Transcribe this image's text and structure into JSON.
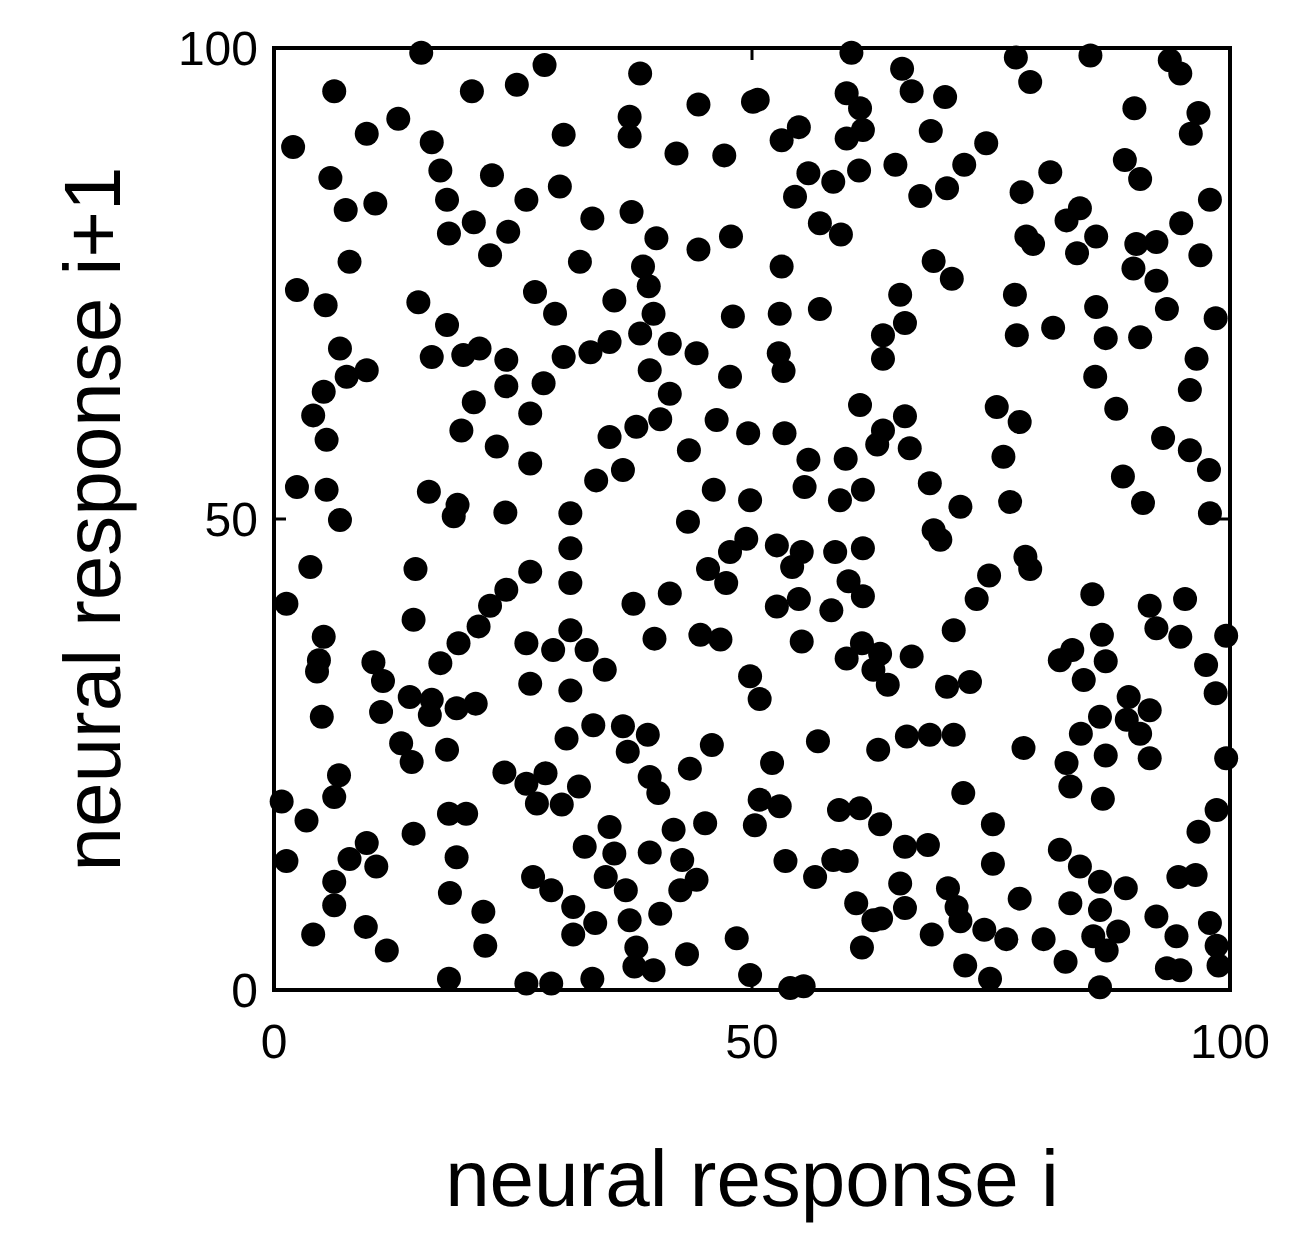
{
  "chart_data": {
    "type": "scatter",
    "xlabel": "neural response i",
    "ylabel": "neural response i+1",
    "xlim": [
      0,
      100
    ],
    "ylim": [
      0,
      100
    ],
    "xticks": [
      0,
      50,
      100
    ],
    "yticks": [
      0,
      50,
      100
    ],
    "marker": "circle",
    "series": [
      {
        "color": "#000000",
        "x": [
          15.4,
          6.3,
          20.7,
          25.4,
          28.3,
          2.0,
          9.7,
          13.0,
          16.5,
          17.4,
          5.9,
          7.5,
          10.6,
          18.1,
          22.8,
          26.4,
          30.3,
          29.9,
          33.3,
          37.4,
          38.3,
          37.2,
          37.2,
          44.4,
          42.1,
          47.1,
          50.1,
          18.3,
          20.9,
          22.6,
          24.5,
          7.9,
          2.4,
          5.4,
          15.1,
          18.1,
          27.3,
          29.4,
          32.0,
          35.6,
          40.0,
          44.4,
          47.8,
          38.6,
          39.2,
          39.7,
          48.0,
          6.9,
          9.7,
          5.2,
          7.6,
          4.1,
          5.5,
          16.5,
          19.8,
          21.5,
          24.3,
          24.3,
          28.2,
          30.3,
          33.1,
          35.1,
          38.3,
          41.4,
          44.2,
          39.3,
          41.4,
          47.7,
          20.9,
          19.6,
          26.8,
          23.3,
          26.8,
          35.1,
          37.9,
          40.4,
          43.4,
          46.3,
          49.6,
          36.5,
          33.7,
          2.4,
          5.5,
          16.2,
          19.2,
          46.0,
          49.8,
          60.4,
          77.6,
          85.4,
          93.7,
          94.8,
          50.6,
          65.7,
          66.7,
          70.2,
          59.9,
          61.3,
          61.6,
          59.9,
          79.1,
          90.0,
          96.7,
          95.9,
          54.9,
          53.1,
          68.7,
          74.5,
          72.2,
          70.4,
          67.6,
          65.0,
          61.2,
          55.9,
          58.5,
          54.5,
          57.1,
          59.3,
          81.2,
          78.2,
          89.0,
          90.6,
          97.9,
          94.9,
          96.9,
          84.3,
          82.9,
          86.0,
          84.0,
          78.7,
          79.4,
          90.2,
          92.3,
          89.9,
          92.3,
          69.0,
          70.9,
          53.1,
          65.5,
          66.0,
          63.7,
          63.7,
          57.1,
          52.9,
          52.8,
          53.3,
          77.5,
          77.7,
          81.5,
          86.0,
          87.0,
          90.6,
          93.4,
          98.5,
          96.5,
          95.8,
          85.9,
          88.1,
          61.3,
          66.0,
          63.7,
          63.1,
          66.5,
          55.9,
          59.8,
          53.4,
          75.6,
          78.0,
          76.3,
          93.0,
          95.8,
          97.8,
          88.8,
          55.5,
          59.2,
          61.6,
          68.6,
          71.8,
          77.0,
          90.9,
          97.9,
          6.9,
          18.8,
          24.2,
          31.0,
          31.0,
          43.3,
          49.4,
          3.8,
          14.8,
          1.3,
          14.6,
          26.8,
          24.3,
          22.6,
          21.4,
          19.3,
          17.4,
          31.0,
          37.6,
          41.4,
          45.4,
          47.3,
          47.7,
          39.8,
          44.6,
          46.7,
          5.2,
          4.7,
          4.5,
          5.0,
          10.4,
          11.4,
          11.2,
          14.2,
          16.5,
          19.1,
          21.1,
          16.3,
          26.4,
          29.2,
          31.0,
          32.7,
          34.6,
          31.0,
          26.8,
          13.3,
          14.4,
          18.1,
          6.8,
          6.3,
          0.8,
          3.4,
          33.4,
          36.5,
          39.1,
          37.0,
          30.6,
          24.1,
          28.4,
          26.4,
          27.5,
          30.1,
          31.9,
          39.3,
          40.2,
          43.5,
          45.8,
          41.8,
          45.1,
          18.3,
          20.1,
          14.6,
          9.7,
          7.9,
          10.7,
          1.3,
          6.3,
          6.3,
          4.1,
          9.6,
          11.8,
          19.1,
          18.4,
          21.9,
          22.1,
          18.3,
          26.4,
          29.0,
          33.3,
          32.5,
          35.1,
          35.6,
          34.7,
          36.8,
          39.3,
          42.7,
          44.2,
          42.5,
          27.1,
          29.0,
          31.3,
          33.6,
          31.3,
          37.2,
          37.9,
          37.7,
          39.7,
          40.4,
          43.2,
          48.4,
          49.8,
          52.6,
          55.2,
          58.7,
          61.6,
          54.2,
          60.1,
          61.6,
          54.9,
          52.6,
          58.3,
          69.0,
          69.7,
          78.6,
          79.1,
          74.8,
          73.5,
          85.6,
          91.6,
          95.3,
          92.3,
          94.8,
          99.6,
          97.5,
          98.5,
          55.2,
          59.9,
          61.5,
          63.4,
          62.7,
          64.2,
          66.7,
          71.1,
          70.4,
          72.8,
          49.8,
          50.8,
          82.2,
          83.5,
          84.7,
          86.6,
          87.0,
          89.4,
          91.6,
          89.2,
          90.6,
          86.4,
          84.4,
          87.0,
          91.6,
          99.6,
          82.9,
          83.3,
          86.7,
          78.4,
          71.1,
          68.6,
          66.2,
          63.2,
          56.9,
          52.1,
          72.1,
          50.8,
          52.9,
          50.3,
          59.1,
          61.3,
          63.4,
          75.2,
          98.6,
          96.7,
          53.5,
          56.6,
          58.5,
          59.9,
          66.0,
          68.4,
          75.2,
          82.2,
          84.3,
          86.4,
          89.1,
          94.6,
          96.4,
          65.5,
          66.0,
          60.9,
          62.7,
          61.5,
          63.5,
          68.8,
          70.5,
          71.4,
          71.8,
          74.3,
          76.6,
          78.0,
          80.5,
          83.3,
          86.4,
          85.7,
          88.3,
          87.1,
          92.3,
          94.4,
          93.4,
          94.8,
          97.9,
          98.6,
          98.8,
          72.3,
          74.9,
          82.8,
          86.4,
          54.0,
          55.4
        ],
        "values": [
          99.5,
          95.4,
          95.4,
          96.1,
          98.2,
          89.5,
          90.9,
          92.5,
          90.0,
          87.0,
          86.2,
          82.8,
          83.5,
          83.9,
          86.5,
          83.9,
          90.8,
          85.3,
          81.9,
          82.6,
          97.3,
          92.7,
          90.6,
          94.0,
          88.8,
          88.6,
          94.3,
          80.3,
          81.5,
          78.0,
          80.5,
          77.3,
          74.3,
          72.7,
          73.0,
          70.6,
          74.1,
          71.8,
          77.3,
          73.2,
          79.8,
          78.6,
          80.0,
          76.8,
          74.7,
          71.8,
          71.5,
          68.1,
          65.8,
          63.5,
          65.1,
          61.0,
          58.4,
          67.2,
          67.4,
          68.1,
          66.9,
          64.1,
          64.4,
          67.2,
          67.7,
          68.8,
          69.7,
          68.6,
          67.6,
          65.8,
          63.3,
          65.1,
          62.4,
          59.4,
          61.2,
          57.7,
          55.9,
          58.7,
          59.8,
          60.6,
          57.3,
          60.5,
          59.1,
          55.2,
          54.1,
          53.4,
          53.1,
          52.9,
          51.5,
          53.1,
          52.0,
          99.5,
          99.0,
          99.2,
          98.7,
          97.3,
          94.5,
          97.8,
          95.4,
          94.8,
          95.2,
          93.6,
          91.3,
          90.4,
          96.4,
          93.6,
          93.1,
          90.9,
          91.6,
          90.2,
          91.2,
          89.9,
          87.6,
          85.1,
          84.3,
          87.6,
          87.0,
          86.7,
          85.8,
          84.2,
          81.4,
          80.2,
          86.8,
          84.7,
          88.1,
          86.1,
          83.9,
          81.4,
          78.0,
          83.0,
          81.7,
          80.0,
          78.2,
          80.0,
          79.2,
          79.2,
          79.4,
          76.6,
          75.3,
          77.4,
          75.5,
          76.8,
          73.8,
          70.8,
          69.5,
          67.0,
          72.3,
          71.8,
          67.6,
          65.7,
          73.8,
          69.5,
          70.3,
          72.5,
          69.2,
          69.3,
          72.3,
          71.3,
          67.0,
          63.7,
          65.1,
          61.7,
          62.1,
          60.9,
          59.4,
          57.9,
          57.5,
          56.3,
          56.4,
          59.1,
          61.9,
          60.3,
          56.6,
          58.6,
          57.3,
          55.2,
          54.5,
          53.4,
          52.0,
          53.1,
          53.8,
          51.3,
          51.8,
          51.7,
          50.6,
          49.9,
          50.3,
          50.7,
          50.6,
          46.9,
          49.7,
          47.9,
          44.9,
          44.7,
          41.0,
          39.3,
          44.4,
          42.5,
          40.8,
          38.6,
          36.8,
          34.7,
          43.2,
          41.0,
          42.1,
          44.7,
          43.2,
          46.5,
          37.3,
          37.7,
          37.2,
          37.5,
          35.0,
          33.8,
          29.0,
          34.8,
          32.8,
          29.5,
          31.1,
          30.8,
          29.9,
          30.4,
          29.2,
          36.8,
          36.1,
          38.2,
          36.1,
          34.0,
          31.8,
          32.5,
          26.2,
          24.2,
          25.5,
          22.8,
          20.5,
          20.0,
          18.0,
          28.1,
          28.0,
          27.1,
          25.3,
          26.7,
          23.1,
          23.0,
          21.9,
          19.8,
          19.7,
          21.6,
          22.6,
          20.9,
          23.5,
          26.0,
          17.0,
          17.7,
          18.7,
          18.7,
          16.6,
          15.6,
          13.9,
          13.1,
          13.7,
          11.5,
          9.0,
          5.9,
          6.7,
          4.2,
          14.1,
          10.3,
          8.3,
          4.7,
          1.2,
          0.7,
          0.7,
          1.2,
          15.2,
          17.3,
          14.5,
          12.0,
          10.6,
          14.6,
          13.8,
          11.7,
          10.6,
          12.0,
          10.6,
          8.8,
          7.1,
          5.9,
          7.4,
          4.5,
          2.5,
          2.1,
          8.1,
          3.8,
          5.5,
          1.6,
          47.2,
          46.5,
          46.5,
          46.9,
          44.9,
          43.4,
          41.8,
          41.5,
          40.7,
          40.3,
          48.8,
          47.8,
          46.0,
          44.7,
          44.0,
          41.5,
          42.0,
          40.8,
          41.5,
          38.4,
          37.5,
          37.6,
          34.5,
          31.5,
          37.0,
          35.2,
          36.8,
          35.7,
          34.0,
          32.4,
          35.4,
          38.2,
          32.2,
          32.7,
          33.3,
          30.9,
          35.0,
          36.1,
          32.9,
          37.7,
          34.9,
          31.1,
          29.7,
          28.7,
          27.2,
          29.0,
          27.2,
          24.9,
          24.6,
          24.6,
          24.1,
          21.6,
          20.3,
          25.7,
          27.1,
          27.1,
          26.9,
          25.5,
          26.4,
          24.1,
          20.9,
          20.2,
          19.5,
          17.5,
          19.1,
          19.3,
          17.6,
          17.6,
          19.1,
          16.8,
          13.7,
          12.0,
          13.8,
          13.7,
          15.2,
          15.4,
          13.4,
          14.9,
          13.1,
          11.5,
          10.8,
          12.0,
          12.2,
          11.3,
          8.7,
          9.2,
          7.4,
          4.5,
          7.6,
          5.9,
          10.8,
          8.8,
          7.3,
          6.4,
          5.4,
          9.7,
          5.4,
          9.2,
          8.5,
          5.7,
          6.2,
          4.2,
          7.8,
          5.7,
          2.3,
          2.1,
          7.1,
          4.7,
          2.6,
          2.6,
          1.2,
          3.0,
          0.3,
          0.2,
          0.4
        ]
      }
    ]
  }
}
